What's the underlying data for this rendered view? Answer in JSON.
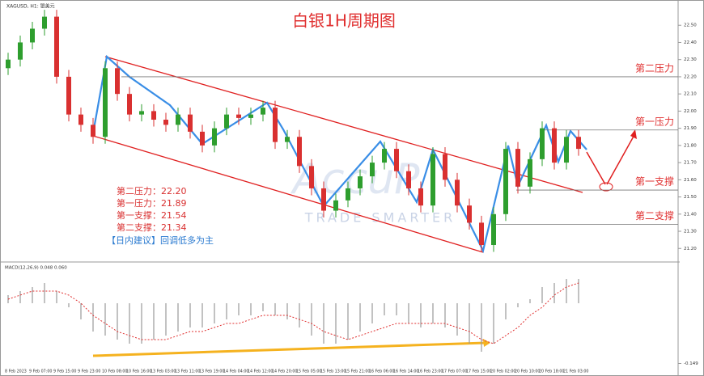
{
  "chart_data": [
    {
      "type": "candlestick",
      "title": "白银1H周期图",
      "symbol": "XAGUSD, H1: 银美元",
      "up_color": "#2e9e2e",
      "down_color": "#d93030",
      "categories": [
        "8 Feb 2023",
        null,
        "9 Feb 07:00",
        null,
        "9 Feb 15:00",
        null,
        "9 Feb 23:00",
        null,
        "10 Feb 08:00",
        null,
        "10 Feb 16:00",
        null,
        "13 Feb 03:00",
        null,
        "13 Feb 11:00",
        null,
        "13 Feb 19:00",
        null,
        "14 Feb 04:00",
        null,
        "14 Feb 12:00",
        null,
        "14 Feb 20:00",
        null,
        "15 Feb 05:00",
        null,
        "15 Feb 13:00",
        null,
        "15 Feb 21:00",
        null,
        "16 Feb 06:00",
        null,
        "16 Feb 14:00",
        null,
        "16 Feb 23:00",
        null,
        "17 Feb 07:00",
        null,
        "17 Feb 15:00",
        null,
        "20 Feb 02:00",
        null,
        "20 Feb 10:00",
        null,
        "20 Feb 18:00",
        null,
        "21 Feb 03:00",
        null
      ],
      "open": [
        22.25,
        22.3,
        22.4,
        22.48,
        22.55,
        22.2,
        21.98,
        21.92,
        21.85,
        22.25,
        22.1,
        21.98,
        22.0,
        21.95,
        21.92,
        21.98,
        21.88,
        21.8,
        21.9,
        21.98,
        21.96,
        21.98,
        22.02,
        21.82,
        21.85,
        21.68,
        21.55,
        21.42,
        21.48,
        21.55,
        21.62,
        21.7,
        21.78,
        21.65,
        21.55,
        21.45,
        21.75,
        21.6,
        21.45,
        21.35,
        21.22,
        21.4,
        21.78,
        21.56,
        21.72,
        21.9,
        21.7,
        21.85
      ],
      "high": [
        22.34,
        22.44,
        22.52,
        22.59,
        22.59,
        22.24,
        22.02,
        21.96,
        22.29,
        22.29,
        22.14,
        22.04,
        22.04,
        21.99,
        22.02,
        22.02,
        21.92,
        21.94,
        22.02,
        22.02,
        22.02,
        22.06,
        22.06,
        21.89,
        21.89,
        21.72,
        21.59,
        21.52,
        21.59,
        21.66,
        21.74,
        21.82,
        21.82,
        21.69,
        21.59,
        21.79,
        21.79,
        21.64,
        21.49,
        21.39,
        21.44,
        21.82,
        21.82,
        21.76,
        21.94,
        21.94,
        21.89,
        21.89
      ],
      "low": [
        22.21,
        22.26,
        22.36,
        22.44,
        22.16,
        21.94,
        21.88,
        21.81,
        21.81,
        22.06,
        21.94,
        21.94,
        21.91,
        21.88,
        21.88,
        21.84,
        21.76,
        21.76,
        21.86,
        21.92,
        21.92,
        21.94,
        21.78,
        21.78,
        21.64,
        21.51,
        21.38,
        21.38,
        21.44,
        21.51,
        21.58,
        21.66,
        21.61,
        21.51,
        21.41,
        21.41,
        21.56,
        21.41,
        21.31,
        21.18,
        21.18,
        21.36,
        21.52,
        21.52,
        21.68,
        21.66,
        21.66,
        21.74
      ],
      "close": [
        22.3,
        22.4,
        22.48,
        22.55,
        22.2,
        21.98,
        21.92,
        21.85,
        22.25,
        22.1,
        21.98,
        22.0,
        21.95,
        21.92,
        21.98,
        21.88,
        21.8,
        21.9,
        21.98,
        21.96,
        21.98,
        22.02,
        21.82,
        21.85,
        21.68,
        21.55,
        21.42,
        21.48,
        21.55,
        21.62,
        21.7,
        21.78,
        21.65,
        21.55,
        21.45,
        21.75,
        21.6,
        21.45,
        21.35,
        21.22,
        21.4,
        21.78,
        21.56,
        21.72,
        21.9,
        21.7,
        21.85,
        21.78
      ],
      "ylim": [
        21.14,
        22.6
      ],
      "yticks": [
        {
          "value": 21.2,
          "label": "21.20"
        },
        {
          "value": 21.3,
          "label": "21.30"
        },
        {
          "value": 21.4,
          "label": "21.40"
        },
        {
          "value": 21.5,
          "label": "21.50"
        },
        {
          "value": 21.6,
          "label": "21.60"
        },
        {
          "value": 21.7,
          "label": "21.70"
        },
        {
          "value": 21.8,
          "label": "21.80"
        },
        {
          "value": 21.9,
          "label": "21.90"
        },
        {
          "value": 22,
          "label": "22.00"
        },
        {
          "value": 22.1,
          "label": "22.10"
        },
        {
          "value": 22.2,
          "label": "22.20"
        },
        {
          "value": 22.3,
          "label": "22.30"
        },
        {
          "value": 22.4,
          "label": "22.40"
        },
        {
          "value": 22.5,
          "label": "22.50"
        }
      ],
      "levels": [
        {
          "name": "第二压力",
          "value": 22.2
        },
        {
          "name": "第一压力",
          "value": 21.89
        },
        {
          "name": "第一支撑",
          "value": 21.54
        },
        {
          "name": "第二支撑",
          "value": 21.34
        }
      ],
      "summary": [
        "第二压力：22.20",
        "第一压力：21.89",
        "第一支撑：21.54",
        "第二支撑：21.34"
      ],
      "advice": "【日内建议】回调低多为主",
      "watermark": "TRADE SMARTER"
    },
    {
      "type": "macd",
      "title": "MACD(12,26,9) 0.048 0.060",
      "color": "#999999",
      "signal_color": "#e03030",
      "values": [
        0.02,
        0.03,
        0.04,
        0.05,
        0.03,
        -0.01,
        -0.04,
        -0.07,
        -0.08,
        -0.09,
        -0.1,
        -0.1,
        -0.09,
        -0.08,
        -0.07,
        -0.06,
        -0.06,
        -0.05,
        -0.04,
        -0.03,
        -0.03,
        -0.02,
        -0.03,
        -0.04,
        -0.06,
        -0.08,
        -0.1,
        -0.1,
        -0.09,
        -0.07,
        -0.05,
        -0.03,
        -0.03,
        -0.05,
        -0.06,
        -0.05,
        -0.06,
        -0.08,
        -0.1,
        -0.12,
        -0.1,
        -0.04,
        -0.01,
        0.01,
        0.04,
        0.05,
        0.06,
        0.06
      ],
      "signal": [
        0.01,
        0.02,
        0.03,
        0.03,
        0.03,
        0.02,
        0.0,
        -0.03,
        -0.05,
        -0.07,
        -0.08,
        -0.09,
        -0.09,
        -0.09,
        -0.08,
        -0.07,
        -0.07,
        -0.06,
        -0.05,
        -0.05,
        -0.04,
        -0.03,
        -0.03,
        -0.03,
        -0.04,
        -0.05,
        -0.07,
        -0.08,
        -0.09,
        -0.08,
        -0.07,
        -0.06,
        -0.05,
        -0.05,
        -0.05,
        -0.05,
        -0.05,
        -0.06,
        -0.07,
        -0.09,
        -0.1,
        -0.08,
        -0.06,
        -0.03,
        -0.01,
        0.02,
        0.04,
        0.05
      ],
      "ylim": [
        -0.16,
        0.09
      ],
      "yticks": [
        -0.149
      ]
    }
  ]
}
